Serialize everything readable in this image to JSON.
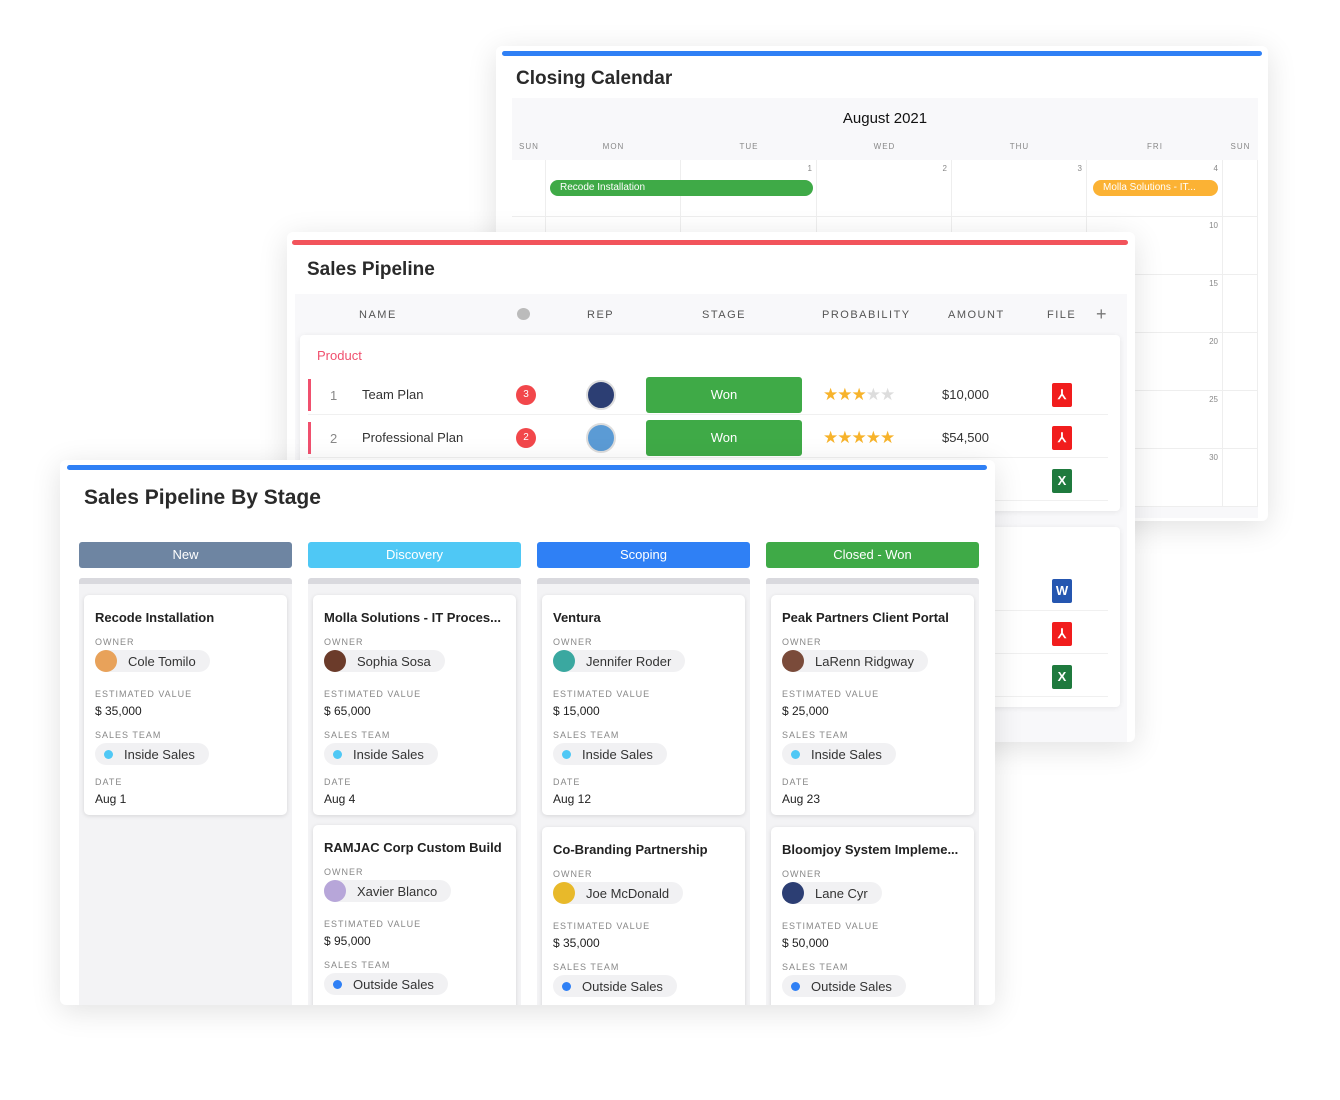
{
  "calendar": {
    "title": "Closing Calendar",
    "month": "August 2021",
    "accent": "#2f80f5",
    "days": [
      "SUN",
      "MON",
      "TUE",
      "WED",
      "THU",
      "FRI",
      "SUN"
    ],
    "first_row_numbers": [
      "",
      "",
      "1",
      "2",
      "3",
      "4",
      ""
    ],
    "side_numbers": [
      "10",
      "15",
      "20",
      "25",
      "30"
    ],
    "events": [
      {
        "label": "Recode Installation",
        "color": "#3faa47"
      },
      {
        "label": "Molla Solutions - IT...",
        "color": "#fbb234"
      }
    ]
  },
  "pipeline": {
    "title": "Sales Pipeline",
    "accent": "#f2545b",
    "columns": [
      "NAME",
      "REP",
      "STAGE",
      "PROBABILITY",
      "AMOUNT",
      "FILE"
    ],
    "comment_icon": "comment-icon",
    "add_icon": "plus-icon",
    "group": "Product",
    "rows": [
      {
        "num": "1",
        "name": "Team Plan",
        "comments": "3",
        "stage": "Won",
        "rating": 3,
        "amount": "$10,000",
        "file": "pdf"
      },
      {
        "num": "2",
        "name": "Professional Plan",
        "comments": "2",
        "stage": "Won",
        "rating": 5,
        "amount": "$54,500",
        "file": "pdf"
      }
    ],
    "hidden_files": [
      "excel",
      "word",
      "pdf",
      "excel"
    ]
  },
  "kanban": {
    "title": "Sales Pipeline By Stage",
    "accent": "#2f80f5",
    "labels": {
      "owner": "OWNER",
      "value": "ESTIMATED VALUE",
      "team": "SALES TEAM",
      "date": "DATE"
    },
    "columns": [
      {
        "name": "New",
        "color": "#6e85a2",
        "cards": [
          {
            "title": "Recode Installation",
            "owner": "Cole Tomilo",
            "value": "$ 35,000",
            "team": "Inside Sales",
            "date": "Aug 1"
          }
        ]
      },
      {
        "name": "Discovery",
        "color": "#4fc8f5",
        "cards": [
          {
            "title": "Molla Solutions - IT Proces...",
            "owner": "Sophia Sosa",
            "value": "$ 65,000",
            "team": "Inside Sales",
            "date": "Aug 4"
          },
          {
            "title": "RAMJAC Corp Custom Build",
            "owner": "Xavier Blanco",
            "value": "$ 95,000",
            "team": "Outside Sales"
          }
        ]
      },
      {
        "name": "Scoping",
        "color": "#2f80f5",
        "cards": [
          {
            "title": "Ventura",
            "owner": "Jennifer Roder",
            "value": "$ 15,000",
            "team": "Inside Sales",
            "date": "Aug 12"
          },
          {
            "title": "Co-Branding Partnership",
            "owner": "Joe McDonald",
            "value": "$ 35,000",
            "team": "Outside Sales"
          }
        ]
      },
      {
        "name": "Closed - Won",
        "color": "#3faa47",
        "cards": [
          {
            "title": "Peak Partners Client Portal",
            "owner": "LaRenn Ridgway",
            "value": "$ 25,000",
            "team": "Inside Sales",
            "date": "Aug 23"
          },
          {
            "title": "Bloomjoy System Impleme...",
            "owner": "Lane Cyr",
            "value": "$ 50,000",
            "team": "Outside Sales"
          }
        ]
      }
    ]
  }
}
